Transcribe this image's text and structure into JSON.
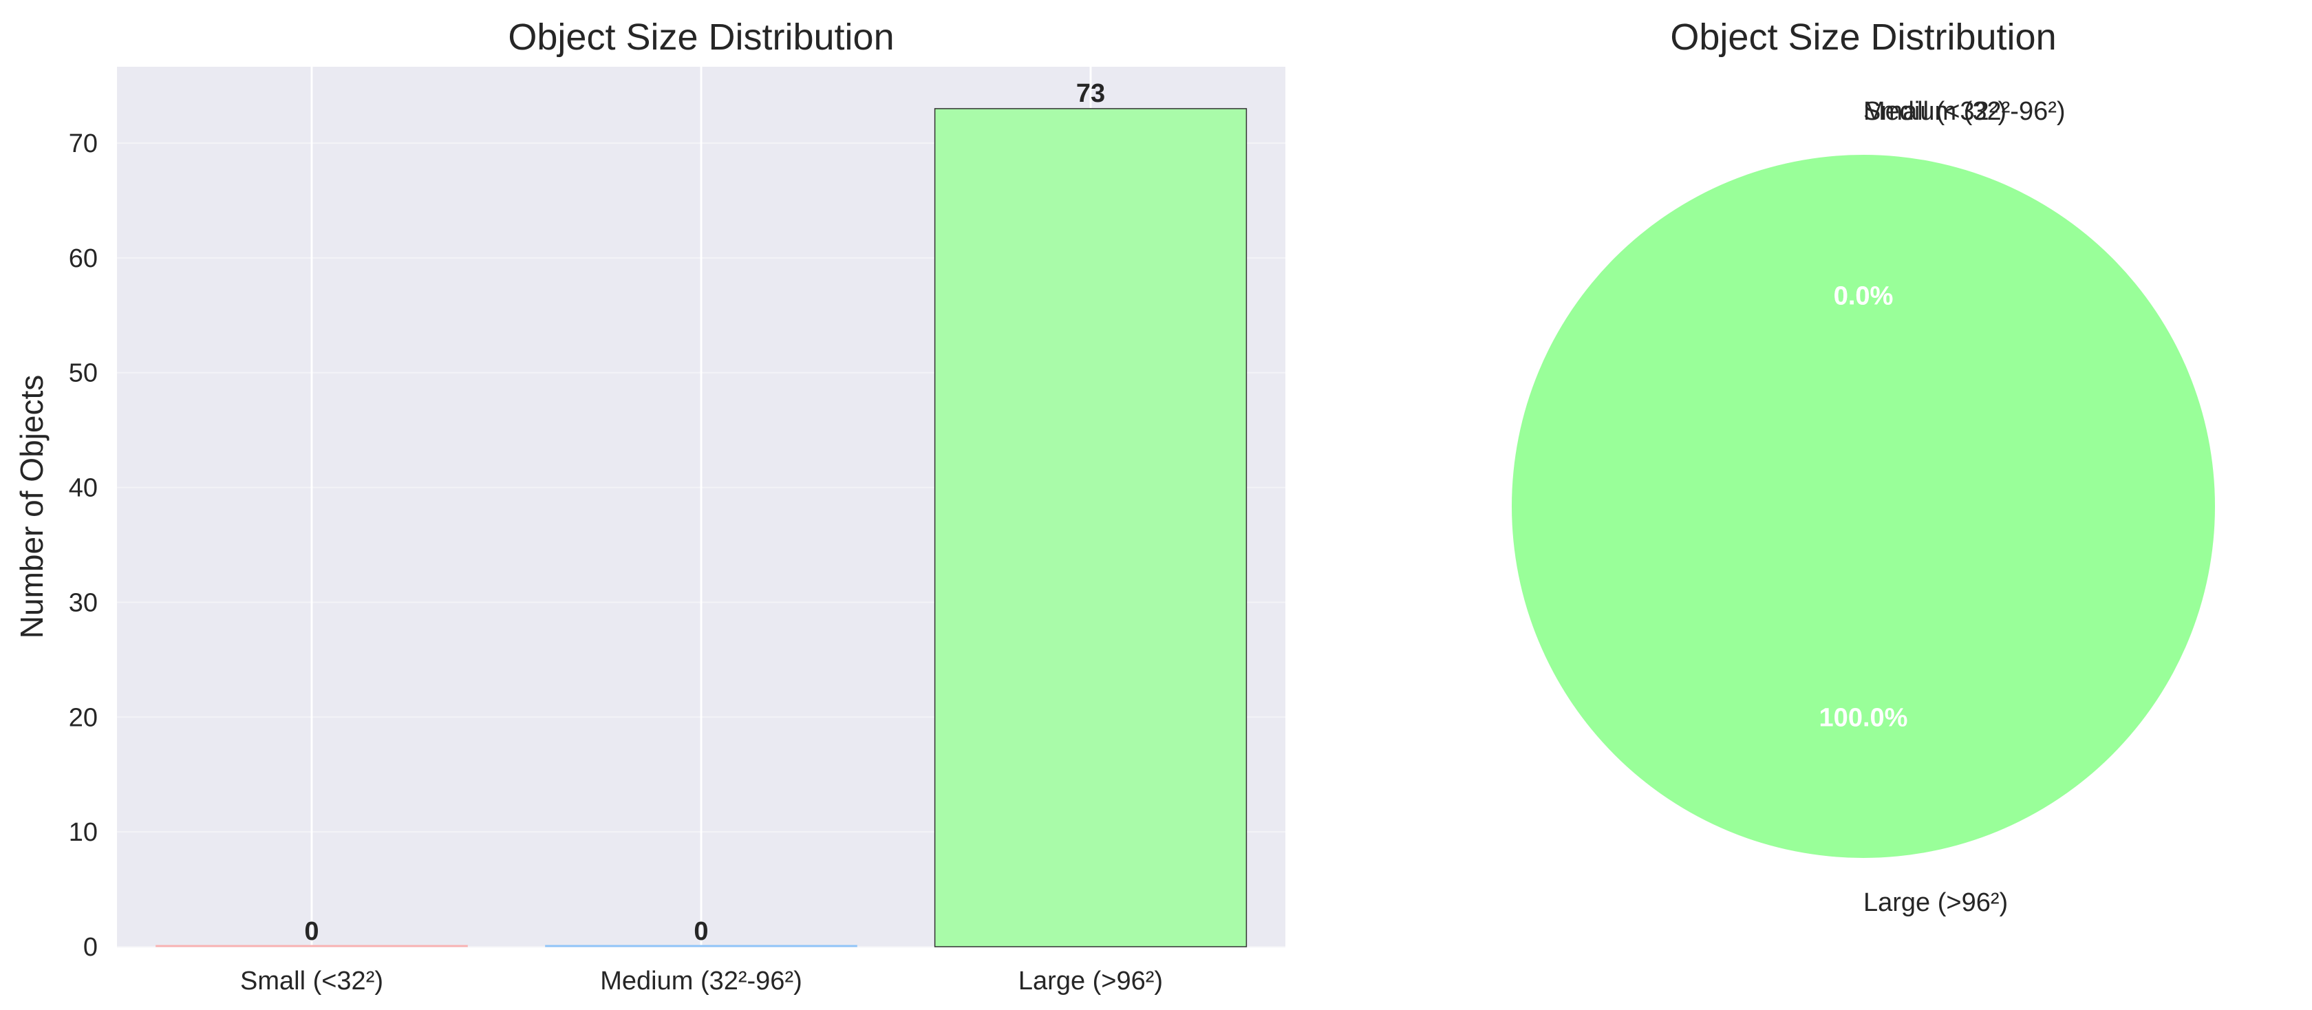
{
  "chart_data": [
    {
      "type": "bar",
      "title": "Object Size Distribution",
      "xlabel": "",
      "ylabel": "Number of Objects",
      "categories": [
        "Small (<32²)",
        "Medium (32²-96²)",
        "Large (>96²)"
      ],
      "values": [
        0,
        0,
        73
      ],
      "data_labels": [
        "0",
        "0",
        "73"
      ],
      "yticks": [
        0,
        10,
        20,
        30,
        40,
        50,
        60,
        70
      ],
      "ylim": [
        0,
        76.65
      ],
      "grid": true,
      "colors": [
        "#ff9999",
        "#66b3ff",
        "#99ff99"
      ]
    },
    {
      "type": "pie",
      "title": "Object Size Distribution",
      "labels": [
        "Small (<32²)",
        "Medium (32²-96²)",
        "Large (>96²)"
      ],
      "values": [
        0,
        0,
        73
      ],
      "percent_labels": [
        "0.0%",
        "0.0%",
        "100.0%"
      ],
      "colors": [
        "#ff9999",
        "#66b3ff",
        "#99ff99"
      ]
    }
  ]
}
